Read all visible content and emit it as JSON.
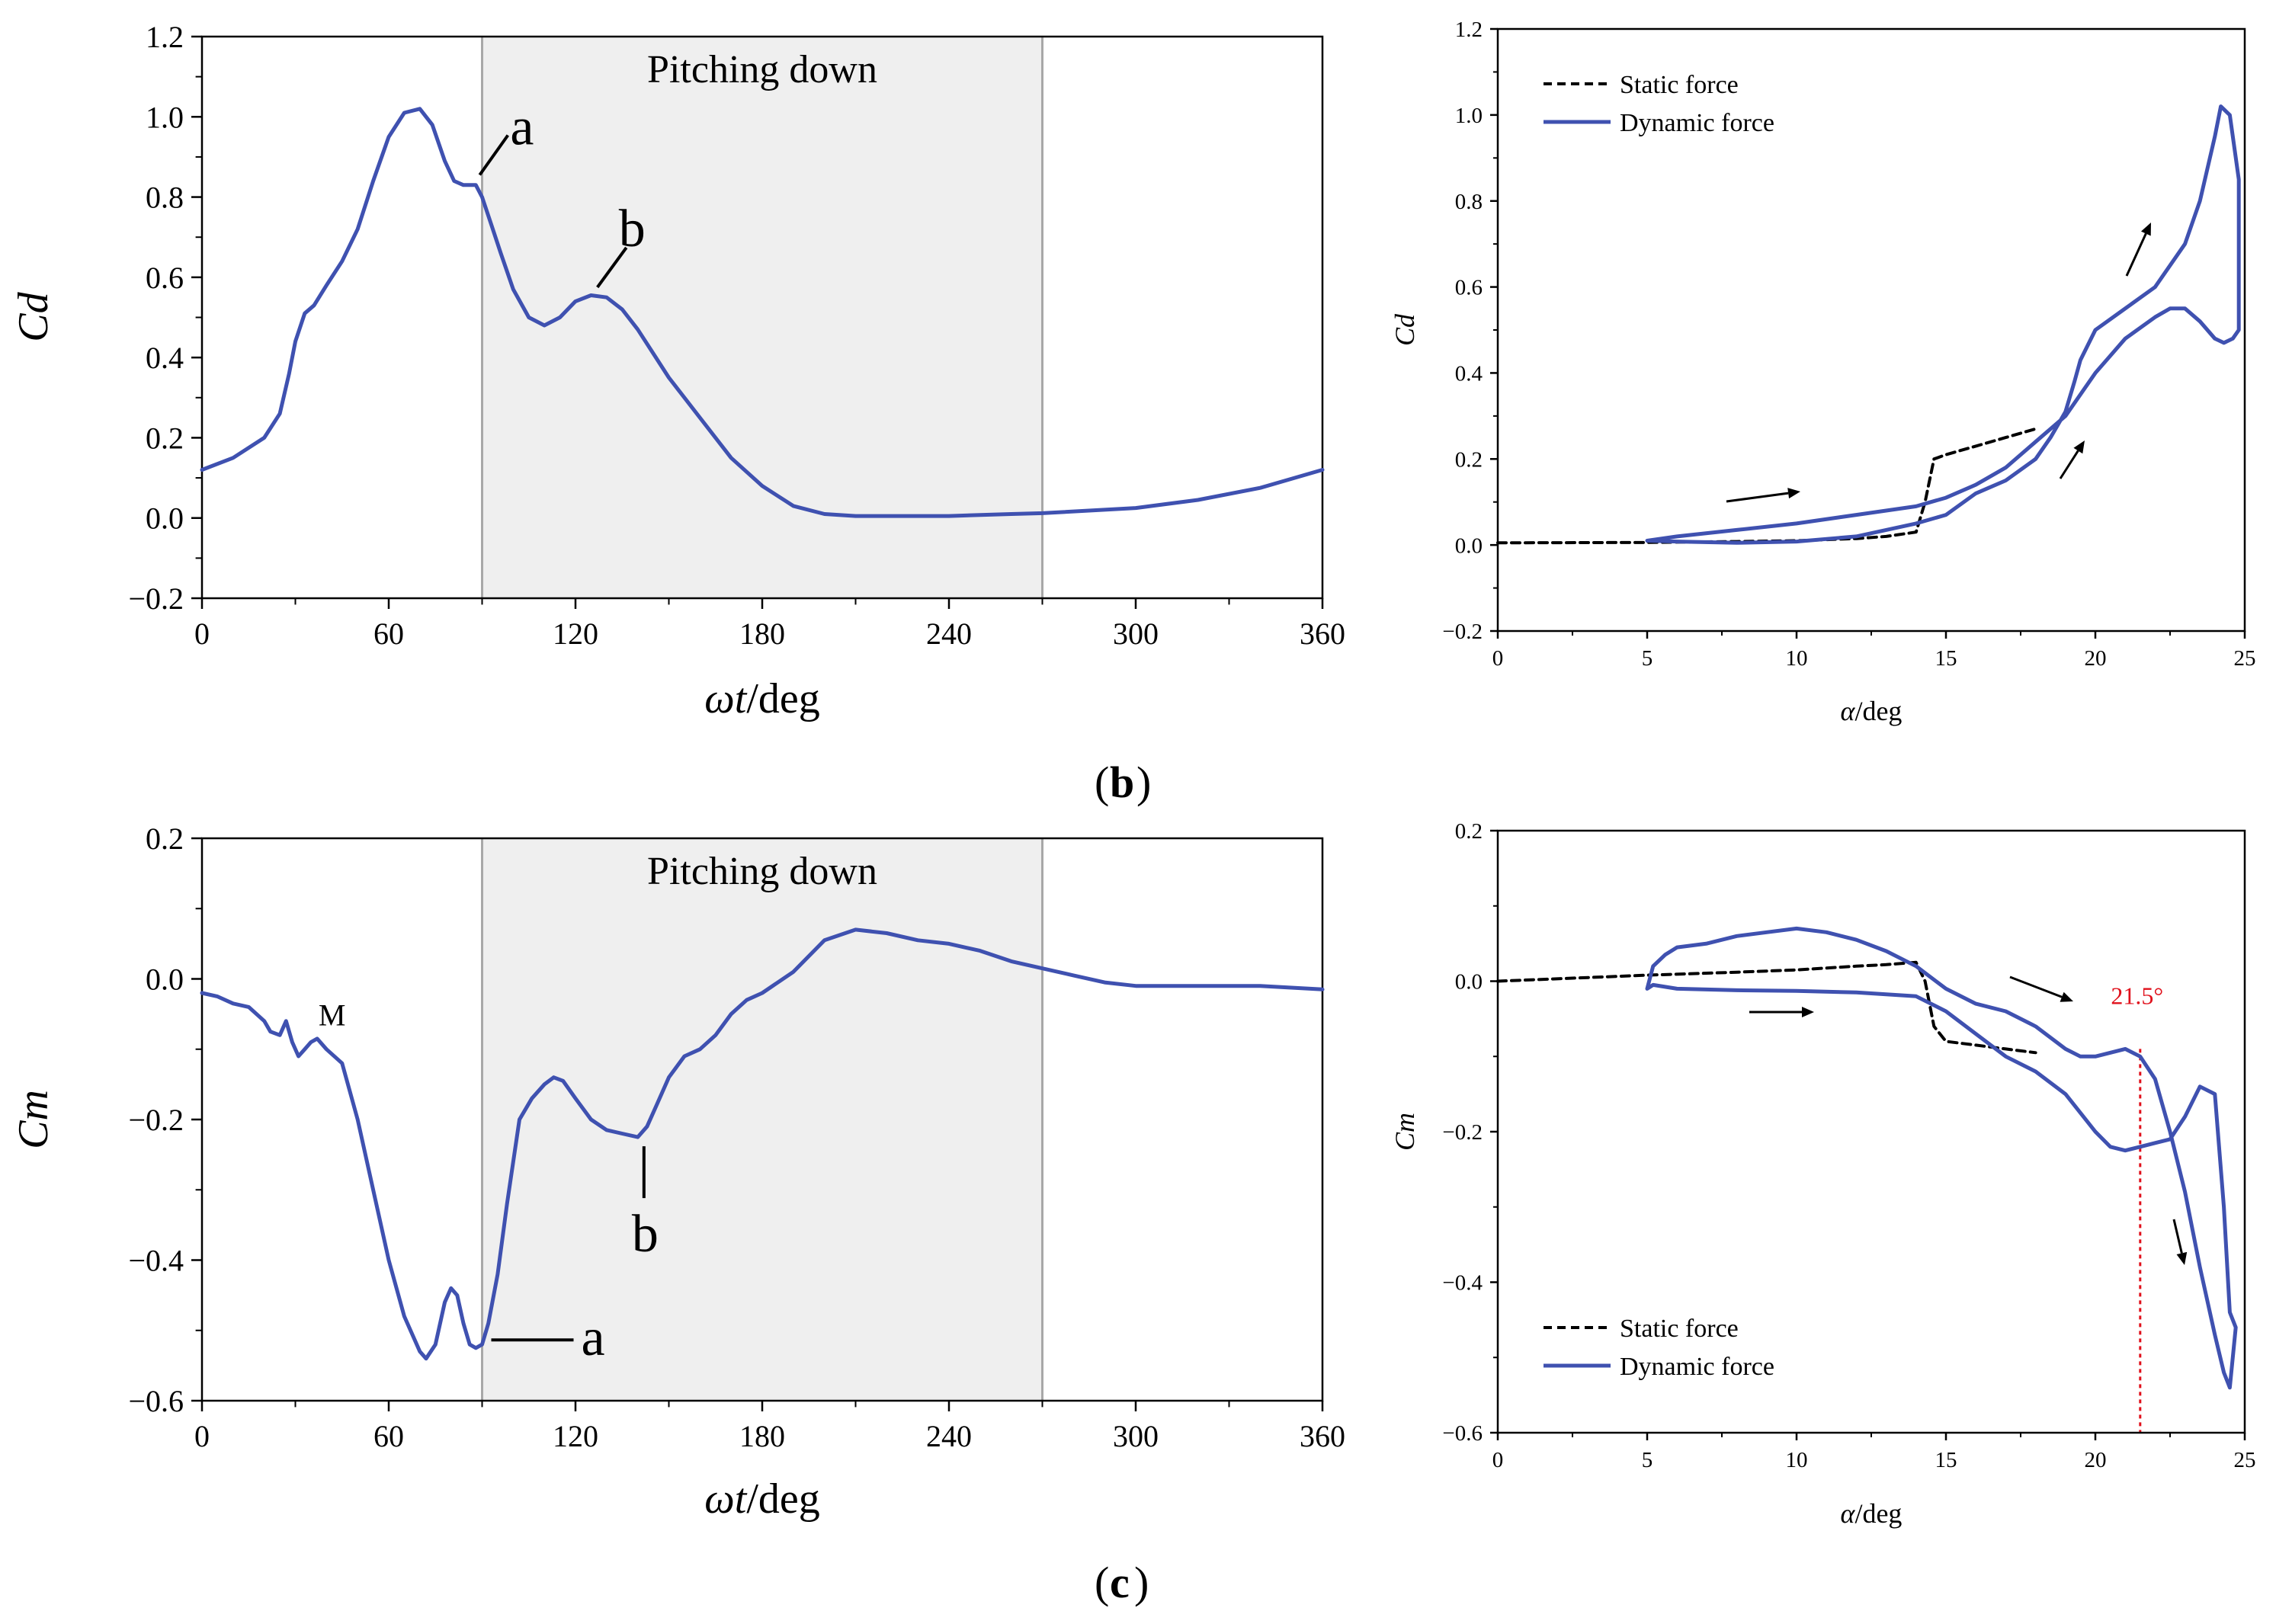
{
  "panels": {
    "b_label": "b",
    "c_label": "c"
  },
  "colors": {
    "dynamic": "#3f51b0",
    "static": "#000000",
    "shade": "#efefef",
    "annotation_red": "#e0101b"
  },
  "chart_data": [
    {
      "id": "cd_time",
      "type": "line",
      "ylabel": "Cd",
      "xlabel": "ωt/deg",
      "xlim": [
        0,
        360
      ],
      "ylim": [
        -0.2,
        1.2
      ],
      "xticks": [
        "0",
        "60",
        "120",
        "180",
        "240",
        "300",
        "360"
      ],
      "yticks": [
        "−0.2",
        "0.0",
        "0.2",
        "0.4",
        "0.6",
        "0.8",
        "1.0",
        "1.2"
      ],
      "shaded_region": {
        "from": 90,
        "to": 270,
        "label": "Pitching down"
      },
      "annotations": [
        {
          "text": "a",
          "at": [
            88,
            0.84
          ]
        },
        {
          "text": "b",
          "at": [
            129,
            0.56
          ]
        }
      ],
      "series": [
        {
          "name": "Dynamic force",
          "x": [
            0,
            10,
            20,
            25,
            28,
            30,
            33,
            36,
            40,
            45,
            50,
            55,
            60,
            65,
            70,
            74,
            78,
            81,
            84,
            86,
            88,
            90,
            93,
            96,
            100,
            105,
            110,
            115,
            120,
            125,
            130,
            135,
            140,
            145,
            150,
            160,
            170,
            180,
            190,
            200,
            210,
            220,
            240,
            260,
            270,
            300,
            320,
            340,
            360
          ],
          "y": [
            0.12,
            0.15,
            0.2,
            0.26,
            0.36,
            0.44,
            0.51,
            0.53,
            0.58,
            0.64,
            0.72,
            0.84,
            0.95,
            1.01,
            1.02,
            0.98,
            0.89,
            0.84,
            0.83,
            0.83,
            0.83,
            0.8,
            0.73,
            0.66,
            0.57,
            0.5,
            0.48,
            0.5,
            0.54,
            0.555,
            0.55,
            0.52,
            0.47,
            0.41,
            0.35,
            0.25,
            0.15,
            0.08,
            0.03,
            0.01,
            0.005,
            0.005,
            0.005,
            0.01,
            0.012,
            0.025,
            0.045,
            0.075,
            0.12
          ]
        }
      ]
    },
    {
      "id": "cd_alpha",
      "type": "line",
      "ylabel": "Cd",
      "xlabel": "α/deg",
      "xlim": [
        0,
        25
      ],
      "ylim": [
        -0.2,
        1.2
      ],
      "xticks": [
        "0",
        "5",
        "10",
        "15",
        "20",
        "25"
      ],
      "yticks": [
        "−0.2",
        "0.0",
        "0.2",
        "0.4",
        "0.6",
        "0.8",
        "1.0",
        "1.2"
      ],
      "legend": {
        "position": "top-left",
        "entries": [
          "Static force",
          "Dynamic force"
        ]
      },
      "series": [
        {
          "name": "Static force",
          "x": [
            0,
            5,
            8,
            10,
            12,
            13,
            14,
            14.3,
            14.6,
            15,
            16,
            17,
            18
          ],
          "y": [
            0.005,
            0.006,
            0.008,
            0.01,
            0.015,
            0.02,
            0.03,
            0.1,
            0.2,
            0.21,
            0.23,
            0.25,
            0.27
          ]
        },
        {
          "name": "Dynamic force",
          "x": [
            5,
            6,
            8,
            10,
            12,
            14,
            15,
            16,
            17,
            18,
            18.5,
            19,
            19.3,
            19.5,
            20,
            21,
            22,
            23,
            23.5,
            24,
            24.2,
            24.5,
            24.8,
            24.8,
            24.6,
            24.3,
            24,
            23.5,
            23,
            22.5,
            22,
            21,
            20.5,
            20,
            19.7,
            19,
            18,
            17,
            16,
            15,
            14.5,
            14,
            12,
            10,
            8,
            6,
            5
          ],
          "y": [
            0.01,
            0.008,
            0.005,
            0.008,
            0.02,
            0.05,
            0.07,
            0.12,
            0.15,
            0.2,
            0.25,
            0.31,
            0.38,
            0.43,
            0.5,
            0.55,
            0.6,
            0.7,
            0.8,
            0.95,
            1.02,
            1.0,
            0.85,
            0.5,
            0.48,
            0.47,
            0.48,
            0.52,
            0.55,
            0.55,
            0.53,
            0.48,
            0.44,
            0.4,
            0.37,
            0.3,
            0.24,
            0.18,
            0.14,
            0.11,
            0.1,
            0.09,
            0.07,
            0.05,
            0.035,
            0.02,
            0.01
          ]
        }
      ]
    },
    {
      "id": "cm_time",
      "type": "line",
      "ylabel": "Cm",
      "xlabel": "ωt/deg",
      "xlim": [
        0,
        360
      ],
      "ylim": [
        -0.6,
        0.2
      ],
      "xticks": [
        "0",
        "60",
        "120",
        "180",
        "240",
        "300",
        "360"
      ],
      "yticks": [
        "−0.6",
        "−0.4",
        "−0.2",
        "0.0",
        "0.2"
      ],
      "shaded_region": {
        "from": 90,
        "to": 270,
        "label": "Pitching down"
      },
      "annotations": [
        {
          "text": "M",
          "at": [
            35,
            -0.09
          ]
        },
        {
          "text": "a",
          "at": [
            90,
            -0.52
          ]
        },
        {
          "text": "b",
          "at": [
            142,
            -0.225
          ]
        }
      ],
      "series": [
        {
          "name": "Dynamic force",
          "x": [
            0,
            5,
            10,
            15,
            20,
            22,
            25,
            27,
            29,
            31,
            33,
            35,
            37,
            40,
            45,
            50,
            55,
            60,
            65,
            70,
            72,
            75,
            78,
            80,
            82,
            84,
            86,
            88,
            90,
            92,
            95,
            98,
            102,
            106,
            110,
            113,
            116,
            120,
            125,
            130,
            135,
            140,
            143,
            146,
            150,
            155,
            160,
            165,
            170,
            175,
            180,
            190,
            200,
            210,
            220,
            230,
            240,
            250,
            260,
            270,
            280,
            290,
            300,
            320,
            340,
            360
          ],
          "y": [
            -0.02,
            -0.025,
            -0.035,
            -0.04,
            -0.06,
            -0.075,
            -0.08,
            -0.06,
            -0.09,
            -0.11,
            -0.1,
            -0.09,
            -0.085,
            -0.1,
            -0.12,
            -0.2,
            -0.3,
            -0.4,
            -0.48,
            -0.53,
            -0.54,
            -0.52,
            -0.46,
            -0.44,
            -0.45,
            -0.49,
            -0.52,
            -0.525,
            -0.52,
            -0.49,
            -0.42,
            -0.32,
            -0.2,
            -0.17,
            -0.15,
            -0.14,
            -0.145,
            -0.17,
            -0.2,
            -0.215,
            -0.22,
            -0.225,
            -0.21,
            -0.18,
            -0.14,
            -0.11,
            -0.1,
            -0.08,
            -0.05,
            -0.03,
            -0.02,
            0.01,
            0.055,
            0.07,
            0.065,
            0.055,
            0.05,
            0.04,
            0.025,
            0.015,
            0.005,
            -0.005,
            -0.01,
            -0.01,
            -0.01,
            -0.015
          ]
        }
      ]
    },
    {
      "id": "cm_alpha",
      "type": "line",
      "ylabel": "Cm",
      "xlabel": "α/deg",
      "xlim": [
        0,
        25
      ],
      "ylim": [
        -0.6,
        0.2
      ],
      "xticks": [
        "0",
        "5",
        "10",
        "15",
        "20",
        "25"
      ],
      "yticks": [
        "−0.6",
        "−0.4",
        "−0.2",
        "0.0",
        "0.2"
      ],
      "legend": {
        "position": "bottom-left",
        "entries": [
          "Static force",
          "Dynamic force"
        ]
      },
      "reference_line": {
        "x": 21.5,
        "label": "21.5°"
      },
      "series": [
        {
          "name": "Static force",
          "x": [
            0,
            5,
            8,
            10,
            12,
            13,
            14,
            14.3,
            14.6,
            15,
            16,
            17,
            18
          ],
          "y": [
            0.0,
            0.008,
            0.012,
            0.015,
            0.02,
            0.022,
            0.025,
            0.0,
            -0.06,
            -0.08,
            -0.085,
            -0.09,
            -0.095
          ]
        },
        {
          "name": "Dynamic force",
          "x": [
            5,
            5.2,
            5.6,
            6,
            7,
            8,
            9,
            10,
            11,
            12,
            13,
            14,
            15,
            16,
            17,
            18,
            19,
            19.5,
            20,
            21,
            21.5,
            22,
            22.5,
            23,
            23.5,
            24,
            24.3,
            24.5,
            24.6,
            24.7,
            24.5,
            24.3,
            24,
            23.5,
            23,
            22.5,
            22,
            21.5,
            21,
            20.5,
            20,
            19,
            18,
            17,
            16,
            15,
            14,
            12,
            10,
            8,
            6,
            5.2,
            5
          ],
          "y": [
            -0.01,
            0.02,
            0.035,
            0.045,
            0.05,
            0.06,
            0.065,
            0.07,
            0.065,
            0.055,
            0.04,
            0.02,
            -0.01,
            -0.03,
            -0.04,
            -0.06,
            -0.09,
            -0.1,
            -0.1,
            -0.09,
            -0.1,
            -0.13,
            -0.2,
            -0.28,
            -0.38,
            -0.47,
            -0.52,
            -0.54,
            -0.5,
            -0.46,
            -0.44,
            -0.3,
            -0.15,
            -0.14,
            -0.18,
            -0.21,
            -0.215,
            -0.22,
            -0.225,
            -0.22,
            -0.2,
            -0.15,
            -0.12,
            -0.1,
            -0.07,
            -0.04,
            -0.02,
            -0.015,
            -0.013,
            -0.012,
            -0.01,
            -0.005,
            -0.01
          ]
        }
      ]
    }
  ]
}
